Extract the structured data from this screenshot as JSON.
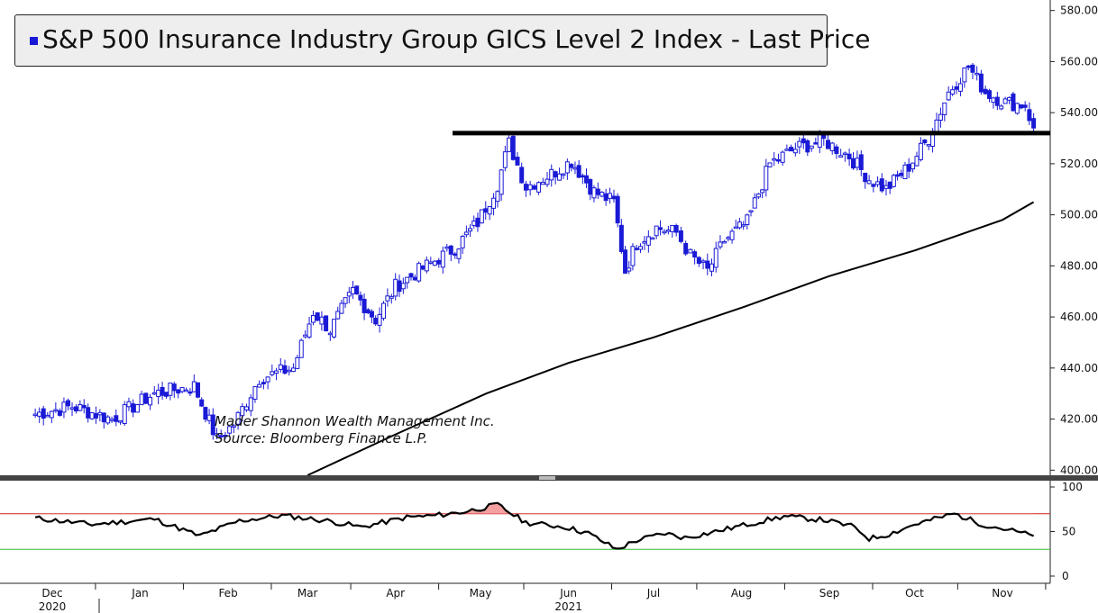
{
  "legend": {
    "label": "S&P 500 Insurance Industry Group GICS Level 2 Index - Last Price",
    "swatch_color": "#1a1ad6"
  },
  "annotation": {
    "line1": "Mader Shannon Wealth Management Inc.",
    "line2": "Source: Bloomberg Finance L.P."
  },
  "colors": {
    "candle": "#1a1ad6",
    "moving_average": "#000000",
    "resistance": "#000000",
    "rsi": "#000000",
    "overbought": "#cc2222",
    "oversold": "#33bb33",
    "overbought_fill": "#f4a0a0"
  },
  "chart_data": [
    {
      "type": "candlestick",
      "title": "S&P 500 Insurance Industry Group GICS Level 2 Index - Last Price",
      "ylim": [
        398,
        582
      ],
      "y_ticks": [
        "580.00",
        "560.00",
        "540.00",
        "520.00",
        "500.00",
        "480.00",
        "460.00",
        "440.00",
        "420.00",
        "400.00"
      ],
      "resistance_level": 532,
      "price_anchors": [
        {
          "date": "2020-11-25",
          "close": 422
        },
        {
          "date": "2020-12-08",
          "close": 425
        },
        {
          "date": "2020-12-22",
          "close": 420
        },
        {
          "date": "2021-01-06",
          "close": 430
        },
        {
          "date": "2021-01-20",
          "close": 433
        },
        {
          "date": "2021-01-28",
          "close": 412
        },
        {
          "date": "2021-02-03",
          "close": 418
        },
        {
          "date": "2021-02-12",
          "close": 436
        },
        {
          "date": "2021-02-24",
          "close": 440
        },
        {
          "date": "2021-03-03",
          "close": 462
        },
        {
          "date": "2021-03-09",
          "close": 455
        },
        {
          "date": "2021-03-17",
          "close": 470
        },
        {
          "date": "2021-03-25",
          "close": 459
        },
        {
          "date": "2021-04-01",
          "close": 472
        },
        {
          "date": "2021-04-12",
          "close": 480
        },
        {
          "date": "2021-04-22",
          "close": 487
        },
        {
          "date": "2021-04-30",
          "close": 497
        },
        {
          "date": "2021-05-07",
          "close": 512
        },
        {
          "date": "2021-05-11",
          "close": 528
        },
        {
          "date": "2021-05-17",
          "close": 511
        },
        {
          "date": "2021-05-26",
          "close": 516
        },
        {
          "date": "2021-06-02",
          "close": 521
        },
        {
          "date": "2021-06-10",
          "close": 509
        },
        {
          "date": "2021-06-17",
          "close": 505
        },
        {
          "date": "2021-06-21",
          "close": 478
        },
        {
          "date": "2021-06-25",
          "close": 489
        },
        {
          "date": "2021-07-02",
          "close": 495
        },
        {
          "date": "2021-07-09",
          "close": 493
        },
        {
          "date": "2021-07-14",
          "close": 484
        },
        {
          "date": "2021-07-20",
          "close": 478
        },
        {
          "date": "2021-07-26",
          "close": 490
        },
        {
          "date": "2021-08-03",
          "close": 497
        },
        {
          "date": "2021-08-11",
          "close": 520
        },
        {
          "date": "2021-08-20",
          "close": 526
        },
        {
          "date": "2021-08-30",
          "close": 529
        },
        {
          "date": "2021-09-08",
          "close": 523
        },
        {
          "date": "2021-09-15",
          "close": 514
        },
        {
          "date": "2021-09-21",
          "close": 510
        },
        {
          "date": "2021-09-29",
          "close": 519
        },
        {
          "date": "2021-10-06",
          "close": 530
        },
        {
          "date": "2021-10-13",
          "close": 548
        },
        {
          "date": "2021-10-20",
          "close": 558
        },
        {
          "date": "2021-10-26",
          "close": 548
        },
        {
          "date": "2021-11-02",
          "close": 544
        },
        {
          "date": "2021-11-09",
          "close": 543
        },
        {
          "date": "2021-11-12",
          "close": 534
        }
      ],
      "moving_average_anchors": [
        {
          "date": "2021-03-01",
          "value": 398
        },
        {
          "date": "2021-04-01",
          "value": 414
        },
        {
          "date": "2021-05-03",
          "value": 430
        },
        {
          "date": "2021-06-01",
          "value": 442
        },
        {
          "date": "2021-07-01",
          "value": 452
        },
        {
          "date": "2021-08-02",
          "value": 464
        },
        {
          "date": "2021-09-01",
          "value": 476
        },
        {
          "date": "2021-10-01",
          "value": 486
        },
        {
          "date": "2021-11-01",
          "value": 498
        },
        {
          "date": "2021-11-12",
          "value": 505
        }
      ]
    },
    {
      "type": "line",
      "title": "",
      "ylim": [
        0,
        100
      ],
      "y_ticks": [
        "100",
        "50",
        "0"
      ],
      "overbought": 70,
      "oversold": 30,
      "anchors": [
        {
          "date": "2020-11-25",
          "value": 65
        },
        {
          "date": "2020-12-15",
          "value": 58
        },
        {
          "date": "2021-01-06",
          "value": 64
        },
        {
          "date": "2021-01-22",
          "value": 45
        },
        {
          "date": "2021-02-05",
          "value": 62
        },
        {
          "date": "2021-02-20",
          "value": 68
        },
        {
          "date": "2021-03-08",
          "value": 62
        },
        {
          "date": "2021-03-20",
          "value": 55
        },
        {
          "date": "2021-04-05",
          "value": 66
        },
        {
          "date": "2021-04-15",
          "value": 68
        },
        {
          "date": "2021-04-25",
          "value": 72
        },
        {
          "date": "2021-05-07",
          "value": 80
        },
        {
          "date": "2021-05-17",
          "value": 60
        },
        {
          "date": "2021-05-31",
          "value": 55
        },
        {
          "date": "2021-06-08",
          "value": 48
        },
        {
          "date": "2021-06-18",
          "value": 30
        },
        {
          "date": "2021-06-25",
          "value": 40
        },
        {
          "date": "2021-07-05",
          "value": 48
        },
        {
          "date": "2021-07-12",
          "value": 43
        },
        {
          "date": "2021-07-20",
          "value": 48
        },
        {
          "date": "2021-08-03",
          "value": 58
        },
        {
          "date": "2021-08-16",
          "value": 67
        },
        {
          "date": "2021-08-30",
          "value": 63
        },
        {
          "date": "2021-09-10",
          "value": 55
        },
        {
          "date": "2021-09-15",
          "value": 42
        },
        {
          "date": "2021-09-22",
          "value": 47
        },
        {
          "date": "2021-10-01",
          "value": 58
        },
        {
          "date": "2021-10-15",
          "value": 70
        },
        {
          "date": "2021-10-25",
          "value": 58
        },
        {
          "date": "2021-11-03",
          "value": 52
        },
        {
          "date": "2021-11-12",
          "value": 45
        }
      ]
    }
  ],
  "x_axis": {
    "months": [
      {
        "label": "Dec",
        "date": "2020-12-01"
      },
      {
        "label": "Jan",
        "date": "2021-01-01"
      },
      {
        "label": "Feb",
        "date": "2021-02-01"
      },
      {
        "label": "Mar",
        "date": "2021-03-01"
      },
      {
        "label": "Apr",
        "date": "2021-04-01"
      },
      {
        "label": "May",
        "date": "2021-05-01"
      },
      {
        "label": "Jun",
        "date": "2021-06-01"
      },
      {
        "label": "Jul",
        "date": "2021-07-01"
      },
      {
        "label": "Aug",
        "date": "2021-08-01"
      },
      {
        "label": "Sep",
        "date": "2021-09-01"
      },
      {
        "label": "Oct",
        "date": "2021-10-01"
      },
      {
        "label": "Nov",
        "date": "2021-11-01"
      }
    ],
    "years": [
      {
        "label": "2020",
        "date": "2020-12-01"
      },
      {
        "label": "2021",
        "date": "2021-06-01"
      }
    ]
  }
}
